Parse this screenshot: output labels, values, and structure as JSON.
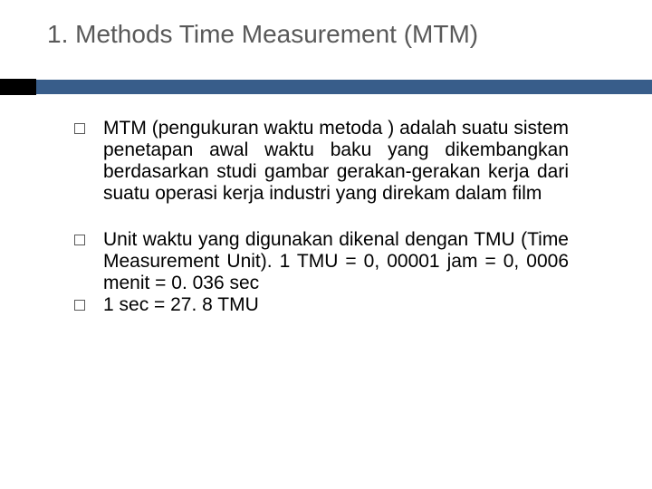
{
  "slide": {
    "title": "1. Methods Time Measurement (MTM)",
    "title_color": "#595959",
    "title_fontsize": 28,
    "accent_bar_color": "#385d8a",
    "accent_square_color": "#000000",
    "background_color": "#ffffff",
    "bullets": [
      {
        "text": "MTM (pengukuran waktu metoda ) adalah suatu sistem penetapan awal waktu baku yang dikembangkan berdasarkan studi gambar gerakan-gerakan kerja dari suatu operasi kerja industri yang direkam dalam film",
        "tight": false
      },
      {
        "text": "Unit waktu yang digunakan dikenal dengan TMU (Time Measurement Unit). 1 TMU = 0, 00001 jam = 0, 0006 menit = 0. 036 sec",
        "tight": true
      },
      {
        "text": "1 sec = 27. 8 TMU",
        "tight": false
      }
    ],
    "bullet_marker_color": "#595959",
    "body_fontsize": 21,
    "body_color": "#000000",
    "body_align": "justify"
  }
}
